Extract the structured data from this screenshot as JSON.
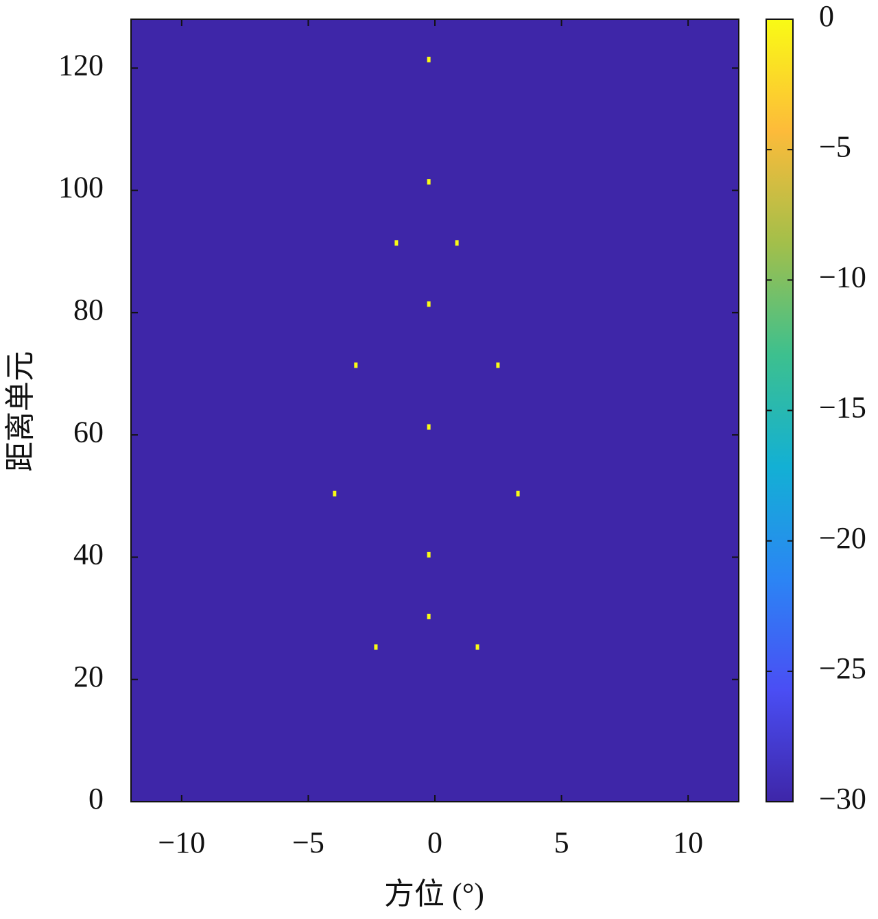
{
  "chart_data": {
    "type": "heatmap",
    "xlabel": "方位 (°)",
    "ylabel": "距离单元",
    "xlim": [
      -12,
      12
    ],
    "ylim": [
      0,
      128
    ],
    "xticks": [
      {
        "value": -10,
        "label": "−10"
      },
      {
        "value": -5,
        "label": "−5"
      },
      0,
      5,
      10
    ],
    "yticks": [
      0,
      20,
      40,
      60,
      80,
      100,
      120
    ],
    "background_value": -30,
    "x": [
      -0.24,
      -0.24,
      -1.52,
      0.87,
      -0.24,
      -3.12,
      2.49,
      -0.24,
      -3.96,
      3.28,
      -0.24,
      -0.24,
      -2.33,
      1.68
    ],
    "y": [
      121.4,
      101.4,
      91.4,
      91.4,
      81.4,
      71.4,
      71.4,
      61.3,
      50.4,
      50.4,
      40.4,
      30.3,
      25.3,
      25.3
    ],
    "values": [
      0,
      0,
      0,
      0,
      0,
      0,
      0,
      0,
      0,
      0,
      0,
      0,
      0,
      0
    ],
    "colorbar": {
      "lim": [
        -30,
        0
      ],
      "ticks": [
        0,
        {
          "value": -5,
          "label": "−5"
        },
        {
          "value": -10,
          "label": "−10"
        },
        {
          "value": -15,
          "label": "−15"
        },
        {
          "value": -20,
          "label": "−20"
        },
        {
          "value": -25,
          "label": "−25"
        },
        {
          "value": -30,
          "label": "−30"
        }
      ],
      "colormap": [
        "#3e26a8",
        "#4a4ef4",
        "#2b85f4",
        "#13b0d4",
        "#3dc08e",
        "#a3bf4a",
        "#fdbb3a",
        "#f9fb15"
      ]
    }
  }
}
